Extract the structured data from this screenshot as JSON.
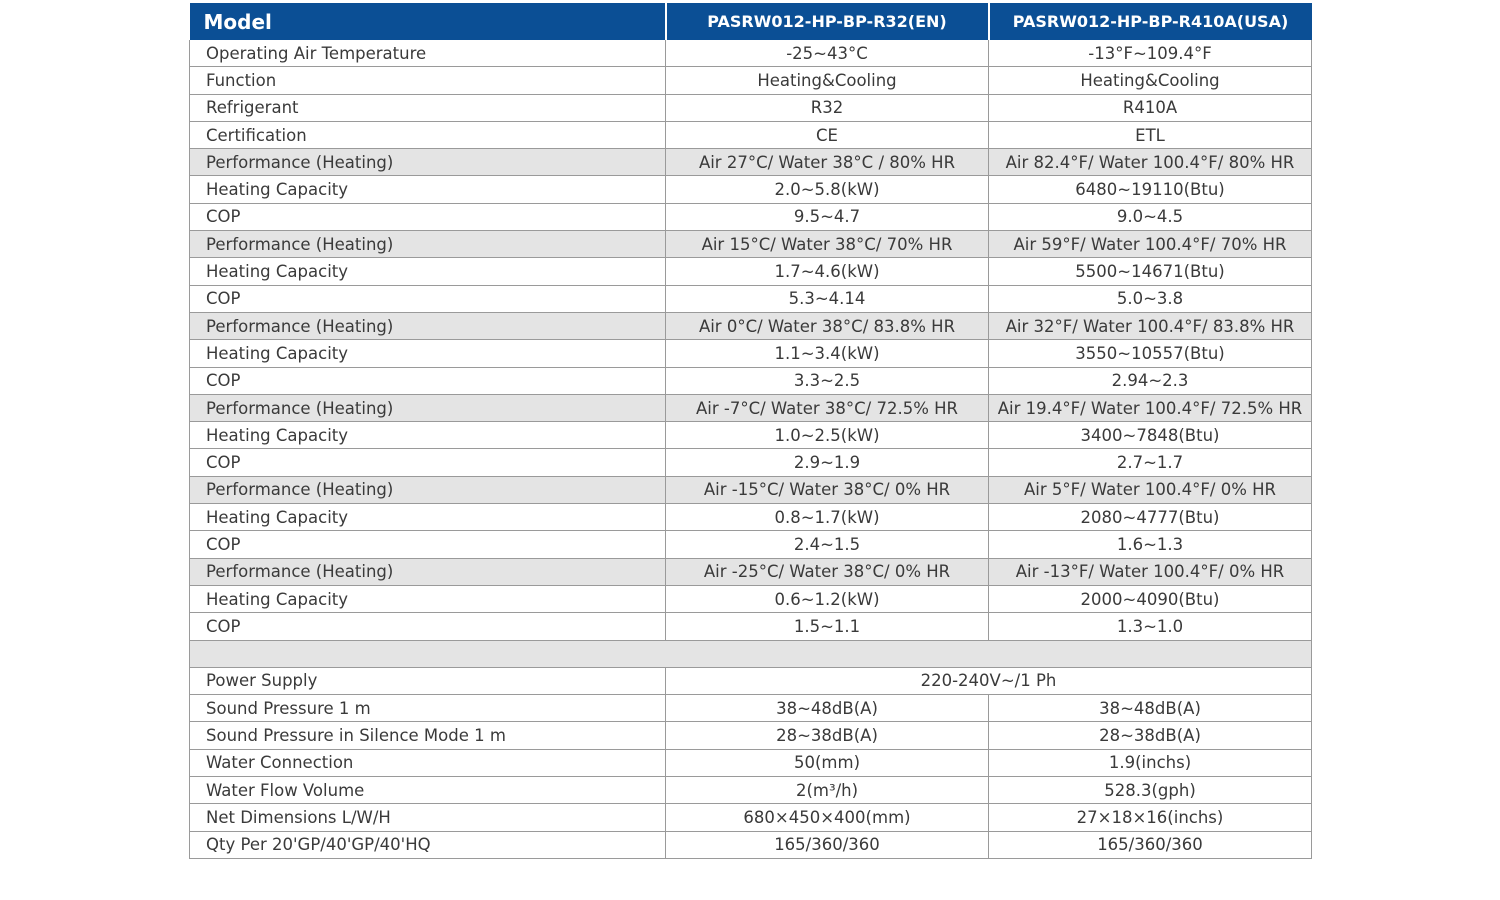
{
  "header": {
    "model_label": "Model",
    "col_a": "PASRW012-HP-BP-R32(EN)",
    "col_b": "PASRW012-HP-BP-R410A(USA)"
  },
  "rows_top": [
    {
      "label": "Operating Air Temperature",
      "a": "-25~43°C",
      "b": "-13°F~109.4°F",
      "shaded": false
    },
    {
      "label": "Function",
      "a": "Heating&Cooling",
      "b": "Heating&Cooling",
      "shaded": false
    },
    {
      "label": "Refrigerant",
      "a": "R32",
      "b": "R410A",
      "shaded": false
    },
    {
      "label": "Certification",
      "a": "CE",
      "b": "ETL",
      "shaded": false
    },
    {
      "label": "Performance (Heating)",
      "a": "Air 27°C/ Water 38°C / 80% HR",
      "b": "Air 82.4°F/ Water 100.4°F/ 80% HR",
      "shaded": true
    },
    {
      "label": "Heating Capacity",
      "a": "2.0~5.8(kW)",
      "b": "6480~19110(Btu)",
      "shaded": false
    },
    {
      "label": "COP",
      "a": "9.5~4.7",
      "b": "9.0~4.5",
      "shaded": false
    },
    {
      "label": "Performance (Heating)",
      "a": "Air 15°C/ Water 38°C/ 70% HR",
      "b": "Air 59°F/ Water 100.4°F/ 70% HR",
      "shaded": true
    },
    {
      "label": "Heating Capacity",
      "a": "1.7~4.6(kW)",
      "b": "5500~14671(Btu)",
      "shaded": false
    },
    {
      "label": "COP",
      "a": "5.3~4.14",
      "b": "5.0~3.8",
      "shaded": false
    },
    {
      "label": "Performance (Heating)",
      "a": "Air 0°C/ Water 38°C/ 83.8% HR",
      "b": "Air 32°F/ Water 100.4°F/ 83.8% HR",
      "shaded": true
    },
    {
      "label": "Heating Capacity",
      "a": "1.1~3.4(kW)",
      "b": "3550~10557(Btu)",
      "shaded": false
    },
    {
      "label": "COP",
      "a": "3.3~2.5",
      "b": "2.94~2.3",
      "shaded": false
    },
    {
      "label": "Performance (Heating)",
      "a": "Air -7°C/ Water 38°C/ 72.5% HR",
      "b": "Air 19.4°F/ Water 100.4°F/ 72.5% HR",
      "shaded": true
    },
    {
      "label": "Heating Capacity",
      "a": "1.0~2.5(kW)",
      "b": "3400~7848(Btu)",
      "shaded": false
    },
    {
      "label": "COP",
      "a": "2.9~1.9",
      "b": "2.7~1.7",
      "shaded": false
    },
    {
      "label": "Performance (Heating)",
      "a": "Air -15°C/ Water 38°C/ 0% HR",
      "b": "Air 5°F/ Water 100.4°F/ 0% HR",
      "shaded": true
    },
    {
      "label": "Heating Capacity",
      "a": "0.8~1.7(kW)",
      "b": "2080~4777(Btu)",
      "shaded": false
    },
    {
      "label": "COP",
      "a": "2.4~1.5",
      "b": "1.6~1.3",
      "shaded": false
    },
    {
      "label": "Performance (Heating)",
      "a": "Air -25°C/ Water 38°C/ 0% HR",
      "b": "Air -13°F/ Water 100.4°F/ 0% HR",
      "shaded": true
    },
    {
      "label": "Heating Capacity",
      "a": "0.6~1.2(kW)",
      "b": "2000~4090(Btu)",
      "shaded": false
    },
    {
      "label": "COP",
      "a": "1.5~1.1",
      "b": "1.3~1.0",
      "shaded": false
    }
  ],
  "power_supply": {
    "label": "Power Supply",
    "value": "220-240V~/1 Ph"
  },
  "rows_bottom": [
    {
      "label": "Sound Pressure 1 m",
      "a": "38~48dB(A)",
      "b": "38~48dB(A)"
    },
    {
      "label": "Sound Pressure in Silence Mode 1 m",
      "a": "28~38dB(A)",
      "b": "28~38dB(A)"
    },
    {
      "label": "Water Connection",
      "a": "50(mm)",
      "b": "1.9(inchs)"
    },
    {
      "label": "Water Flow Volume",
      "a": "2(m³/h)",
      "b": "528.3(gph)"
    },
    {
      "label": "Net Dimensions L/W/H",
      "a": "680×450×400(mm)",
      "b": "27×18×16(inchs)"
    },
    {
      "label": "Qty Per 20'GP/40'GP/40'HQ",
      "a": "165/360/360",
      "b": "165/360/360"
    }
  ]
}
